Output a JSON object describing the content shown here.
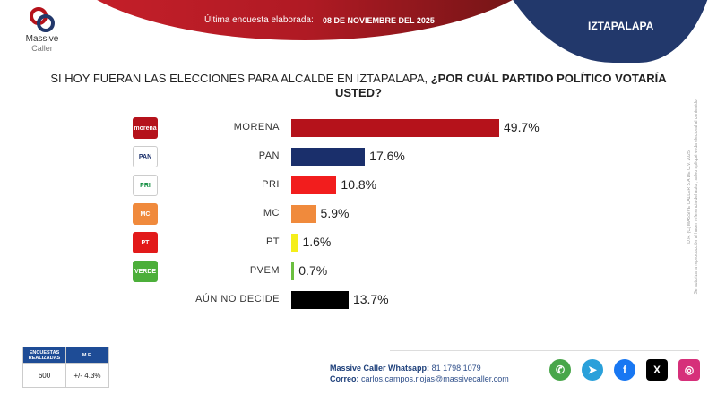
{
  "header": {
    "survey_label": "Última encuesta elaborada:",
    "survey_date": "08 DE NOVIEMBRE DEL 2025",
    "region": "IZTAPALAPA"
  },
  "logo": {
    "line1": "Massive",
    "line2": "Caller"
  },
  "chart_data": {
    "type": "bar",
    "orientation": "horizontal",
    "title_plain": "SI HOY FUERAN LAS ELECCIONES PARA ALCALDE EN IZTAPALAPA, ",
    "title_bold": "¿POR CUÁL PARTIDO POLÍTICO VOTARÍA USTED?",
    "categories": [
      "MORENA",
      "PAN",
      "PRI",
      "MC",
      "PT",
      "PVEM",
      "AÚN NO DECIDE"
    ],
    "values": [
      49.7,
      17.6,
      10.8,
      5.9,
      1.6,
      0.7,
      13.7
    ],
    "labels": [
      "49.7%",
      "17.6%",
      "10.8%",
      "5.9%",
      "1.6%",
      "0.7%",
      "13.7%"
    ],
    "colors": [
      "#b5121b",
      "#1a2f6b",
      "#f21d1d",
      "#f08a3c",
      "#f5ee1a",
      "#6abf3f",
      "#000000"
    ],
    "icons": [
      {
        "name": "morena-logo",
        "text": "morena",
        "bg": "#b5121b"
      },
      {
        "name": "pan-logo",
        "text": "PAN",
        "bg": "#ffffff"
      },
      {
        "name": "pri-logo",
        "text": "PRI",
        "bg": "#ffffff"
      },
      {
        "name": "mc-logo",
        "text": "MC",
        "bg": "#f08a3c"
      },
      {
        "name": "pt-logo",
        "text": "PT",
        "bg": "#e21a1a"
      },
      {
        "name": "pvem-logo",
        "text": "VERDE",
        "bg": "#4caf3a"
      }
    ]
  },
  "legal": {
    "line1": "D.R. (C) MASSIVE CALLER S.A DE C.V. 2025",
    "line2": "Se autoriza la reproducción al hacer referencia del autor, salvo apliqué veda electoral al contenido"
  },
  "survey_table": {
    "col1": "ENCUESTAS REALIZADAS",
    "col2": "M.E.",
    "val1": "600",
    "val2": "+/- 4.3%"
  },
  "contact": {
    "whatsapp_label": "Massive Caller Whatsapp:",
    "whatsapp": "81 1798 1079",
    "email_label": "Correo:",
    "email": "carlos.campos.riojas@massivecaller.com"
  },
  "social": [
    {
      "name": "whatsapp",
      "color": "#48a64a",
      "glyph": "✆"
    },
    {
      "name": "telegram",
      "color": "#2aa0da",
      "glyph": "➤"
    },
    {
      "name": "facebook",
      "color": "#1877f2",
      "glyph": "f"
    },
    {
      "name": "x",
      "color": "#000000",
      "glyph": "X"
    },
    {
      "name": "instagram",
      "color": "#d6307a",
      "glyph": "◎"
    }
  ]
}
